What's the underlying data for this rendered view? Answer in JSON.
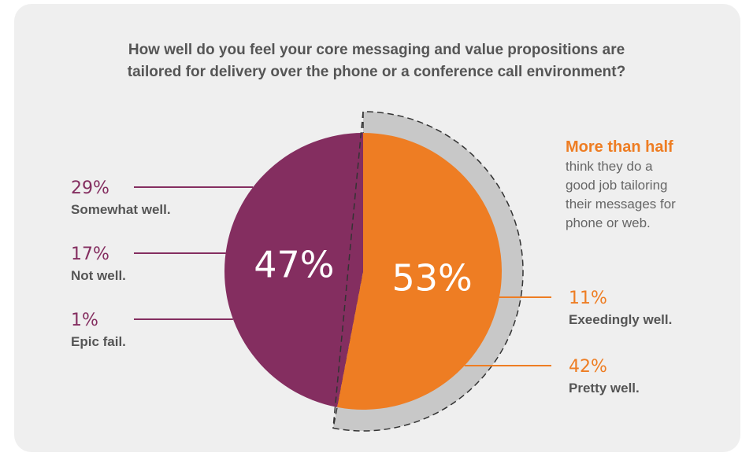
{
  "chart_data": {
    "type": "pie",
    "title_lines": [
      "How well do you feel your core messaging and value propositions are",
      "tailored for delivery over the phone or a conference call environment?"
    ],
    "slices": [
      {
        "value": 53,
        "value_label": "53%",
        "color": "#ee7d23",
        "items": [
          {
            "label": "Exeedingly well.",
            "value": 11,
            "value_label": "11%"
          },
          {
            "label": "Pretty well.",
            "value": 42,
            "value_label": "42%"
          }
        ]
      },
      {
        "value": 47,
        "value_label": "47%",
        "color": "#842e60",
        "items": [
          {
            "label": "Somewhat well.",
            "value": 29,
            "value_label": "29%"
          },
          {
            "label": "Not well.",
            "value": 17,
            "value_label": "17%"
          },
          {
            "label": "Epic fail.",
            "value": 1,
            "value_label": "1%"
          }
        ]
      }
    ],
    "highlight_color": "#c8c8c8",
    "annotation": {
      "heading": "More than half",
      "lines": [
        "think they do a",
        "good job tailoring",
        "their messages for",
        "phone or web."
      ]
    }
  }
}
